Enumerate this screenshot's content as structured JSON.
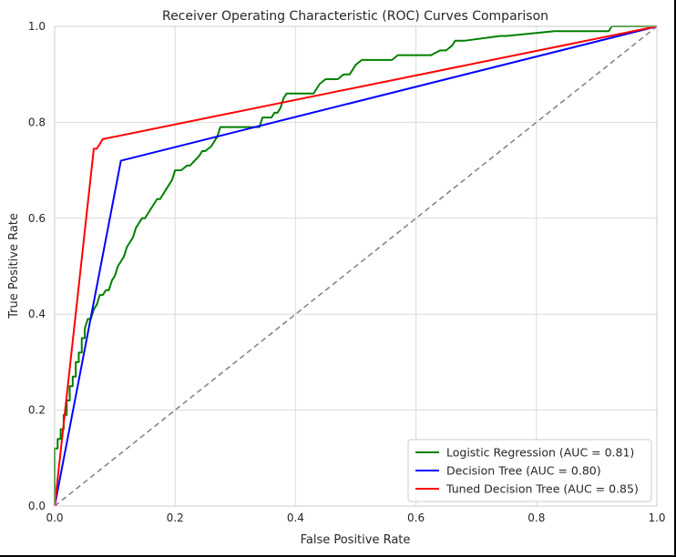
{
  "chart_data": {
    "type": "line",
    "title": "Receiver Operating Characteristic (ROC) Curves Comparison",
    "xlabel": "False Positive Rate",
    "ylabel": "True Positive Rate",
    "xlim": [
      0.0,
      1.0
    ],
    "ylim": [
      0.0,
      1.0
    ],
    "x_ticks": [
      "0.0",
      "0.2",
      "0.4",
      "0.6",
      "0.8",
      "1.0"
    ],
    "y_ticks": [
      "0.0",
      "0.2",
      "0.4",
      "0.6",
      "0.8",
      "1.0"
    ],
    "grid": true,
    "legend_position": "lower right",
    "series": [
      {
        "name": "Logistic Regression (AUC = 0.81)",
        "color": "#008000",
        "x": [
          0.0,
          0.0,
          0.005,
          0.005,
          0.01,
          0.01,
          0.015,
          0.015,
          0.02,
          0.02,
          0.025,
          0.025,
          0.03,
          0.03,
          0.035,
          0.035,
          0.04,
          0.04,
          0.045,
          0.045,
          0.05,
          0.05,
          0.055,
          0.06,
          0.065,
          0.065,
          0.07,
          0.075,
          0.08,
          0.085,
          0.09,
          0.095,
          0.1,
          0.105,
          0.11,
          0.115,
          0.12,
          0.125,
          0.13,
          0.135,
          0.14,
          0.145,
          0.15,
          0.155,
          0.16,
          0.165,
          0.17,
          0.175,
          0.18,
          0.185,
          0.19,
          0.195,
          0.2,
          0.205,
          0.21,
          0.22,
          0.225,
          0.24,
          0.245,
          0.25,
          0.26,
          0.27,
          0.275,
          0.28,
          0.3,
          0.34,
          0.345,
          0.36,
          0.365,
          0.37,
          0.375,
          0.38,
          0.385,
          0.39,
          0.41,
          0.42,
          0.43,
          0.44,
          0.45,
          0.455,
          0.46,
          0.47,
          0.48,
          0.49,
          0.5,
          0.51,
          0.515,
          0.52,
          0.55,
          0.56,
          0.57,
          0.62,
          0.625,
          0.64,
          0.65,
          0.66,
          0.665,
          0.67,
          0.68,
          0.74,
          0.75,
          0.83,
          0.84,
          0.92,
          0.925,
          0.96,
          0.97,
          1.0
        ],
        "y": [
          0.0,
          0.12,
          0.12,
          0.14,
          0.14,
          0.16,
          0.16,
          0.19,
          0.19,
          0.22,
          0.22,
          0.25,
          0.25,
          0.27,
          0.27,
          0.3,
          0.3,
          0.32,
          0.32,
          0.35,
          0.35,
          0.37,
          0.39,
          0.39,
          0.41,
          0.41,
          0.42,
          0.44,
          0.44,
          0.45,
          0.45,
          0.47,
          0.48,
          0.5,
          0.51,
          0.52,
          0.54,
          0.55,
          0.56,
          0.58,
          0.59,
          0.6,
          0.6,
          0.61,
          0.62,
          0.63,
          0.64,
          0.64,
          0.65,
          0.66,
          0.67,
          0.68,
          0.7,
          0.7,
          0.7,
          0.71,
          0.71,
          0.73,
          0.74,
          0.74,
          0.75,
          0.77,
          0.79,
          0.79,
          0.79,
          0.79,
          0.81,
          0.81,
          0.82,
          0.82,
          0.83,
          0.85,
          0.86,
          0.86,
          0.86,
          0.86,
          0.86,
          0.88,
          0.89,
          0.89,
          0.89,
          0.89,
          0.9,
          0.9,
          0.92,
          0.93,
          0.93,
          0.93,
          0.93,
          0.93,
          0.94,
          0.94,
          0.94,
          0.95,
          0.95,
          0.96,
          0.97,
          0.97,
          0.97,
          0.98,
          0.98,
          0.99,
          0.99,
          0.99,
          1.0,
          1.0,
          1.0,
          1.0
        ]
      },
      {
        "name": "Decision Tree (AUC = 0.80)",
        "color": "#0000ff",
        "x": [
          0.0,
          0.11,
          1.0
        ],
        "y": [
          0.0,
          0.72,
          1.0
        ]
      },
      {
        "name": "Tuned Decision Tree (AUC = 0.85)",
        "color": "#ff0000",
        "x": [
          0.0,
          0.065,
          0.07,
          0.08,
          1.0
        ],
        "y": [
          0.0,
          0.745,
          0.745,
          0.765,
          1.0
        ]
      },
      {
        "color": "#808080",
        "dashed": true,
        "x": [
          0.0,
          1.0
        ],
        "y": [
          0.0,
          1.0
        ]
      }
    ]
  }
}
